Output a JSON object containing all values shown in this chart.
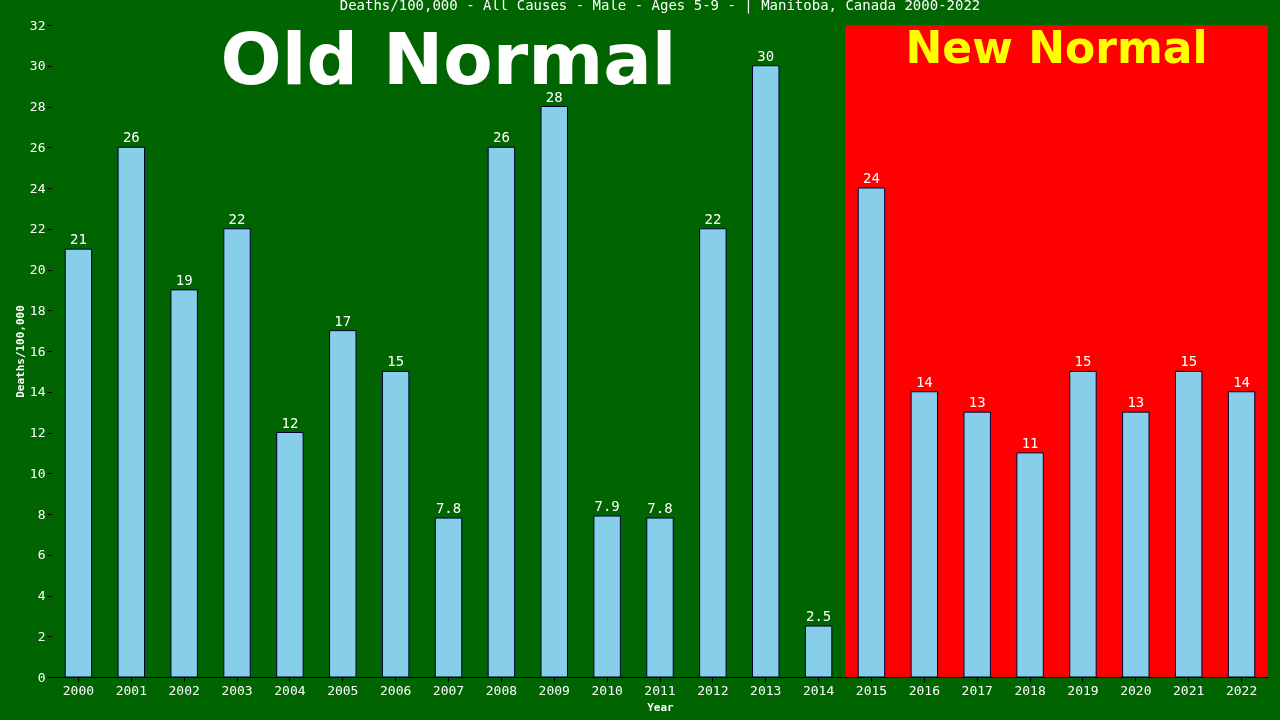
{
  "chart_data": {
    "type": "bar",
    "title": "Deaths/100,000 - All Causes - Male - Ages 5-9 -  | Manitoba, Canada 2000-2022",
    "xlabel": "Year",
    "ylabel": "Deaths/100,000",
    "categories": [
      "2000",
      "2001",
      "2002",
      "2003",
      "2004",
      "2005",
      "2006",
      "2007",
      "2008",
      "2009",
      "2010",
      "2011",
      "2012",
      "2013",
      "2014",
      "2015",
      "2016",
      "2017",
      "2018",
      "2019",
      "2020",
      "2021",
      "2022"
    ],
    "series": [
      {
        "color": "#87ceeb",
        "values": [
          21,
          26,
          19,
          22,
          12,
          17,
          15,
          7.8,
          26,
          28,
          7.9,
          7.8,
          22,
          30,
          2.5,
          24,
          14,
          13,
          11,
          15,
          13,
          15,
          14
        ]
      }
    ],
    "ylim": [
      0,
      32
    ],
    "yticks": [
      0,
      2,
      4,
      6,
      8,
      10,
      12,
      14,
      16,
      18,
      20,
      22,
      24,
      26,
      28,
      30,
      32
    ],
    "data_labels": true,
    "grid": false,
    "bands": [
      {
        "axis": "x",
        "from": "2000",
        "to": "2014",
        "label": "Old Normal",
        "color": "#006400"
      },
      {
        "axis": "x",
        "from": "2015",
        "to": "2022",
        "label": "New Normal",
        "color": "#ff0000"
      }
    ]
  }
}
